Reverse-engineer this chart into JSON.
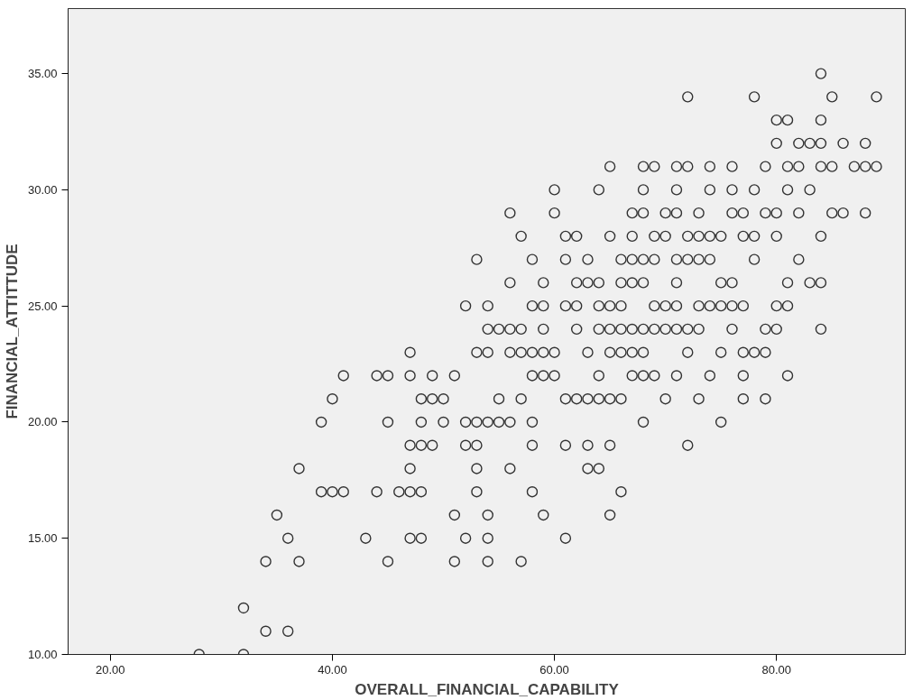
{
  "chart_data": {
    "type": "scatter",
    "xlabel": "OVERALL_FINANCIAL_CAPABILITY",
    "ylabel": "FINANCIAL_ATTITTUDE",
    "xlim": [
      16.2,
      91.6
    ],
    "ylim": [
      10,
      37.8
    ],
    "xticks": [
      {
        "value": 20,
        "label": "20.00"
      },
      {
        "value": 40,
        "label": "40.00"
      },
      {
        "value": 60,
        "label": "60.00"
      },
      {
        "value": 80,
        "label": "80.00"
      }
    ],
    "yticks": [
      {
        "value": 10,
        "label": "10.00"
      },
      {
        "value": 15,
        "label": "15.00"
      },
      {
        "value": 20,
        "label": "20.00"
      },
      {
        "value": 25,
        "label": "25.00"
      },
      {
        "value": 30,
        "label": "30.00"
      },
      {
        "value": 35,
        "label": "35.00"
      }
    ],
    "grid": false,
    "marker": "circle",
    "series": [
      {
        "color": "#333333",
        "x": [
          28,
          32,
          34,
          36,
          32,
          34,
          37,
          45,
          51,
          54,
          57,
          36,
          43,
          47,
          48,
          52,
          54,
          61,
          35,
          51,
          54,
          59,
          65,
          39,
          40,
          41,
          44,
          46,
          47,
          48,
          53,
          58,
          66,
          37,
          47,
          53,
          56,
          63,
          64,
          47,
          48,
          49,
          52,
          53,
          58,
          61,
          63,
          65,
          72,
          39,
          45,
          48,
          50,
          52,
          53,
          54,
          55,
          56,
          58,
          68,
          75,
          40,
          48,
          49,
          50,
          55,
          57,
          61,
          62,
          63,
          64,
          65,
          66,
          70,
          73,
          77,
          79,
          41,
          44,
          45,
          47,
          49,
          51,
          58,
          59,
          60,
          64,
          67,
          68,
          69,
          71,
          74,
          77,
          81,
          47,
          53,
          54,
          56,
          57,
          58,
          59,
          60,
          63,
          65,
          66,
          67,
          68,
          72,
          75,
          77,
          78,
          79,
          54,
          55,
          56,
          57,
          59,
          62,
          64,
          65,
          66,
          67,
          68,
          69,
          70,
          71,
          72,
          73,
          76,
          79,
          80,
          84,
          52,
          54,
          58,
          59,
          61,
          62,
          64,
          65,
          66,
          69,
          70,
          71,
          73,
          74,
          75,
          76,
          77,
          80,
          81,
          56,
          59,
          62,
          63,
          64,
          66,
          67,
          68,
          71,
          75,
          76,
          81,
          83,
          84,
          53,
          58,
          61,
          63,
          66,
          67,
          68,
          69,
          71,
          72,
          73,
          74,
          78,
          82,
          57,
          61,
          62,
          65,
          67,
          69,
          70,
          72,
          73,
          74,
          75,
          77,
          78,
          80,
          84,
          56,
          60,
          67,
          68,
          70,
          71,
          73,
          76,
          77,
          79,
          80,
          82,
          85,
          86,
          88,
          60,
          64,
          68,
          71,
          74,
          76,
          78,
          81,
          83,
          65,
          68,
          69,
          71,
          72,
          74,
          76,
          79,
          81,
          82,
          84,
          85,
          87,
          88,
          89,
          80,
          82,
          83,
          84,
          86,
          88,
          80,
          81,
          84,
          72,
          78,
          85,
          89,
          84
        ],
        "values": [
          10,
          10,
          11,
          11,
          12,
          14,
          14,
          14,
          14,
          14,
          14,
          15,
          15,
          15,
          15,
          15,
          15,
          15,
          16,
          16,
          16,
          16,
          16,
          17,
          17,
          17,
          17,
          17,
          17,
          17,
          17,
          17,
          17,
          18,
          18,
          18,
          18,
          18,
          18,
          19,
          19,
          19,
          19,
          19,
          19,
          19,
          19,
          19,
          19,
          20,
          20,
          20,
          20,
          20,
          20,
          20,
          20,
          20,
          20,
          20,
          20,
          21,
          21,
          21,
          21,
          21,
          21,
          21,
          21,
          21,
          21,
          21,
          21,
          21,
          21,
          21,
          21,
          22,
          22,
          22,
          22,
          22,
          22,
          22,
          22,
          22,
          22,
          22,
          22,
          22,
          22,
          22,
          22,
          22,
          23,
          23,
          23,
          23,
          23,
          23,
          23,
          23,
          23,
          23,
          23,
          23,
          23,
          23,
          23,
          23,
          23,
          23,
          24,
          24,
          24,
          24,
          24,
          24,
          24,
          24,
          24,
          24,
          24,
          24,
          24,
          24,
          24,
          24,
          24,
          24,
          24,
          24,
          25,
          25,
          25,
          25,
          25,
          25,
          25,
          25,
          25,
          25,
          25,
          25,
          25,
          25,
          25,
          25,
          25,
          25,
          25,
          26,
          26,
          26,
          26,
          26,
          26,
          26,
          26,
          26,
          26,
          26,
          26,
          26,
          26,
          27,
          27,
          27,
          27,
          27,
          27,
          27,
          27,
          27,
          27,
          27,
          27,
          27,
          27,
          28,
          28,
          28,
          28,
          28,
          28,
          28,
          28,
          28,
          28,
          28,
          28,
          28,
          28,
          28,
          29,
          29,
          29,
          29,
          29,
          29,
          29,
          29,
          29,
          29,
          29,
          29,
          29,
          29,
          29,
          30,
          30,
          30,
          30,
          30,
          30,
          30,
          30,
          30,
          31,
          31,
          31,
          31,
          31,
          31,
          31,
          31,
          31,
          31,
          31,
          31,
          31,
          31,
          31,
          32,
          32,
          32,
          32,
          32,
          32,
          33,
          33,
          33,
          34,
          34,
          34,
          34,
          35
        ]
      }
    ]
  }
}
